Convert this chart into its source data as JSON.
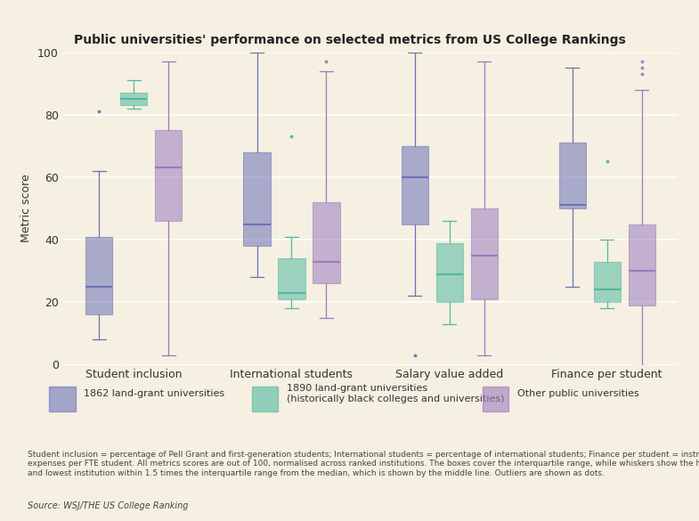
{
  "title": "Public universities' performance on selected metrics from US College Rankings",
  "ylabel": "Metric score",
  "ylim": [
    0,
    100
  ],
  "yticks": [
    0,
    20,
    40,
    60,
    80,
    100
  ],
  "background_color": "#f5f0e1",
  "categories": [
    "Student inclusion",
    "International students",
    "Salary value added",
    "Finance per student"
  ],
  "colors": {
    "1862": "#6b72b8",
    "1890": "#52b8a0",
    "other": "#9b7bbf"
  },
  "box_data": {
    "Student inclusion": {
      "1862": {
        "whislo": 8,
        "q1": 16,
        "med": 25,
        "q3": 41,
        "whishi": 62,
        "fliers": [
          81
        ]
      },
      "1890": {
        "whislo": 82,
        "q1": 83,
        "med": 85,
        "q3": 87,
        "whishi": 91,
        "fliers": []
      },
      "other": {
        "whislo": 3,
        "q1": 46,
        "med": 63,
        "q3": 75,
        "whishi": 97,
        "fliers": []
      }
    },
    "International students": {
      "1862": {
        "whislo": 28,
        "q1": 38,
        "med": 45,
        "q3": 68,
        "whishi": 100,
        "fliers": []
      },
      "1890": {
        "whislo": 18,
        "q1": 21,
        "med": 23,
        "q3": 34,
        "whishi": 41,
        "fliers": [
          73
        ]
      },
      "other": {
        "whislo": 15,
        "q1": 26,
        "med": 33,
        "q3": 52,
        "whishi": 94,
        "fliers": [
          97
        ]
      }
    },
    "Salary value added": {
      "1862": {
        "whislo": 22,
        "q1": 45,
        "med": 60,
        "q3": 70,
        "whishi": 100,
        "fliers": [
          3
        ]
      },
      "1890": {
        "whislo": 13,
        "q1": 20,
        "med": 29,
        "q3": 39,
        "whishi": 46,
        "fliers": []
      },
      "other": {
        "whislo": 3,
        "q1": 21,
        "med": 35,
        "q3": 50,
        "whishi": 97,
        "fliers": []
      }
    },
    "Finance per student": {
      "1862": {
        "whislo": 25,
        "q1": 50,
        "med": 51,
        "q3": 71,
        "whishi": 95,
        "fliers": []
      },
      "1890": {
        "whislo": 18,
        "q1": 20,
        "med": 24,
        "q3": 33,
        "whishi": 40,
        "fliers": [
          65
        ]
      },
      "other": {
        "whislo": 0,
        "q1": 19,
        "med": 30,
        "q3": 45,
        "whishi": 88,
        "fliers": [
          93,
          95,
          97
        ]
      }
    }
  },
  "legend": [
    {
      "label": "1862 land-grant universities",
      "key": "1862"
    },
    {
      "label": "1890 land-grant universities\n(historically black colleges and universities)",
      "key": "1890"
    },
    {
      "label": "Other public universities",
      "key": "other"
    }
  ],
  "footnote": "Student inclusion = percentage of Pell Grant and first-generation students; International students = percentage of international students; Finance per student = instructional\nexpenses per FTE student. All metrics scores are out of 100, normalised across ranked institutions. The boxes cover the interquartile range, while whiskers show the highest\nand lowest institution within 1.5 times the interquartile range from the median, which is shown by the middle line. Outliers are shown as dots.",
  "source": "Source: WSJ/THE US College Ranking"
}
